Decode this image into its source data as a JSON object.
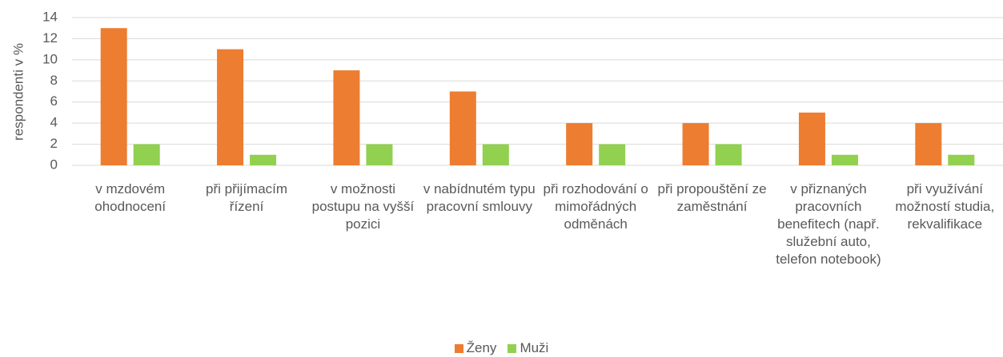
{
  "chart_data": {
    "type": "bar",
    "y_axis_label": "respondenti v %",
    "categories": [
      "v mzdovém ohodnocení",
      "při přijímacím řízení",
      "v možnosti postupu na vyšší pozici",
      "v nabídnutém typu pracovní smlouvy",
      "při rozhodování o mimořádných odměnách",
      "při propouštění ze zaměstnání",
      "v přiznaných pracovních benefitech (např. služební auto, telefon notebook)",
      "při využívání možností studia, rekvalifikace"
    ],
    "series": [
      {
        "name": "Ženy",
        "color": "#ed7d31",
        "values": [
          13,
          11,
          9,
          7,
          4,
          4,
          5,
          4
        ]
      },
      {
        "name": "Muži",
        "color": "#92d050",
        "values": [
          2,
          1,
          2,
          2,
          2,
          2,
          1,
          1
        ]
      }
    ],
    "ylim": [
      0,
      14
    ],
    "yticks": [
      0,
      2,
      4,
      6,
      8,
      10,
      12,
      14
    ],
    "grid": true,
    "legend": "bottom"
  }
}
